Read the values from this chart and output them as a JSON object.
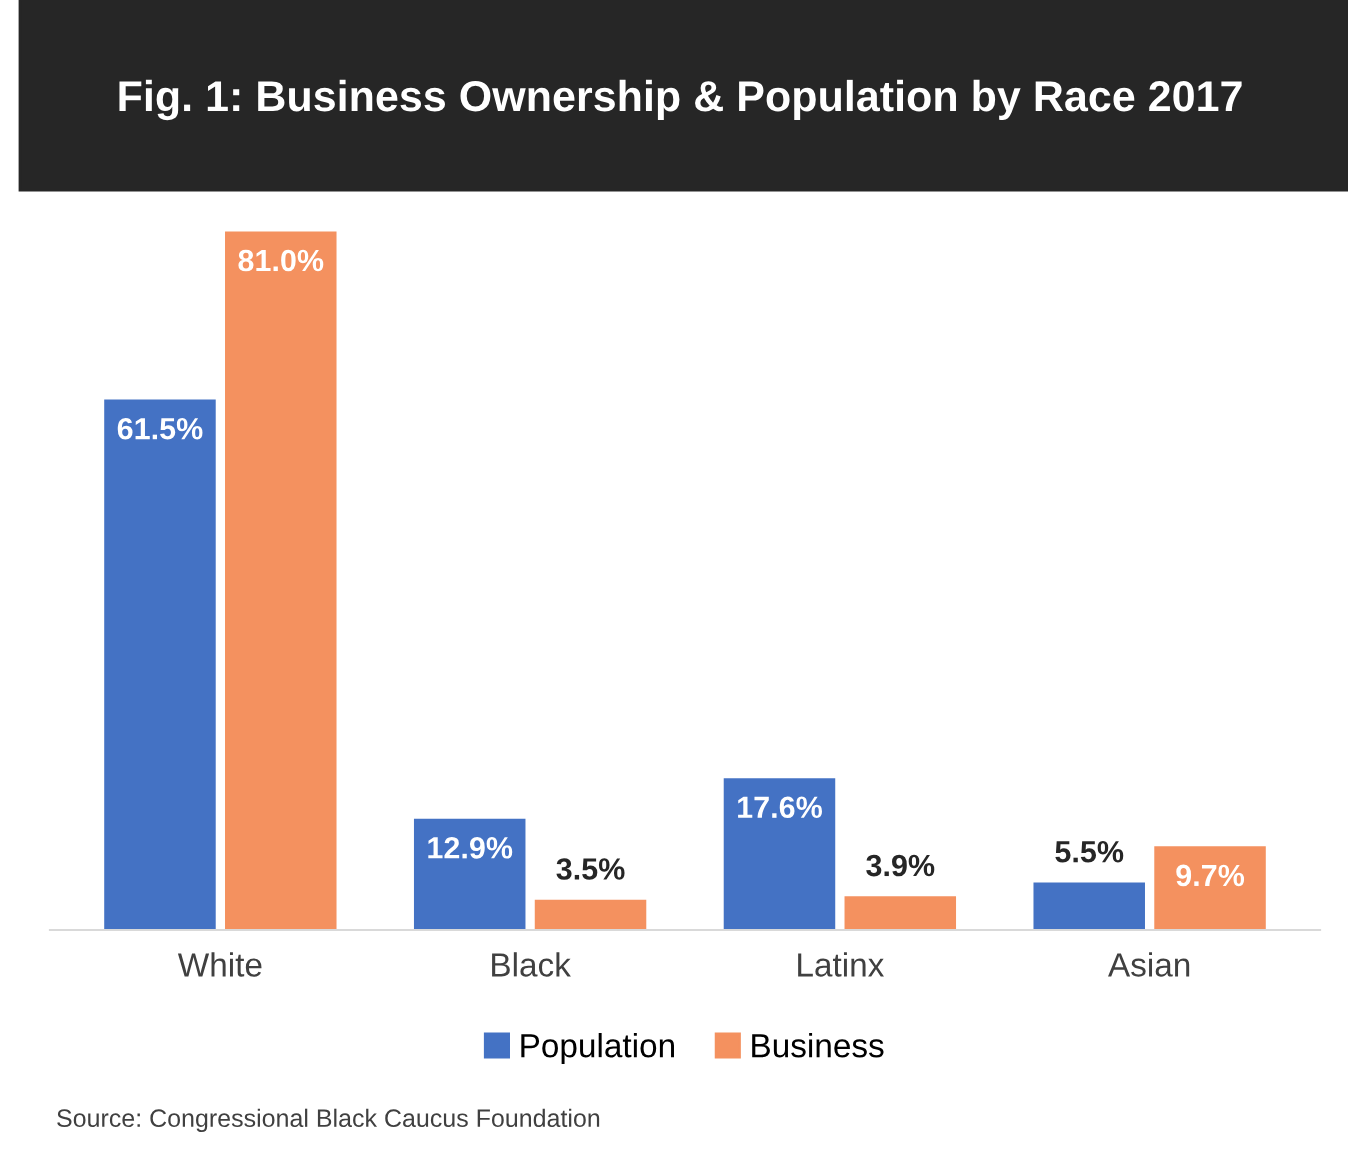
{
  "chart_data": {
    "type": "bar",
    "title": "Fig. 1: Business Ownership & Population by Race 2017",
    "categories": [
      "White",
      "Black",
      "Latinx",
      "Asian"
    ],
    "series": [
      {
        "name": "Population",
        "color": "#4472c4",
        "values": [
          61.5,
          12.9,
          17.6,
          5.5
        ],
        "value_labels": [
          "61.5%",
          "12.9%",
          "17.6%",
          "5.5%"
        ]
      },
      {
        "name": "Business",
        "color": "#f4915f",
        "values": [
          81.0,
          3.5,
          3.9,
          9.7
        ],
        "value_labels": [
          "81.0%",
          "3.5%",
          "3.9%",
          "9.7%"
        ]
      }
    ],
    "legend": "bottom",
    "grid": false,
    "annotations": [
      "Source: Congressional Black Caucus Foundation"
    ]
  }
}
